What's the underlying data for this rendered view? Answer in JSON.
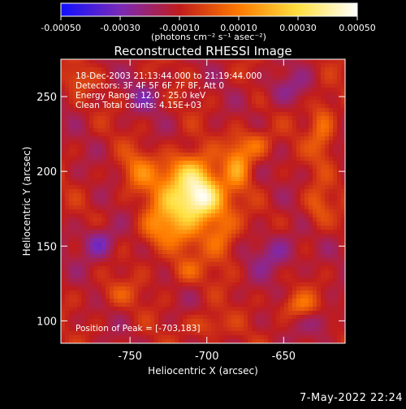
{
  "chart_data": {
    "type": "heatmap",
    "title": "Reconstructed RHESSI Image",
    "xlabel": "Heliocentric X (arcsec)",
    "ylabel": "Heliocentric Y (arcsec)",
    "xlim": [
      -795,
      -610
    ],
    "ylim": [
      85,
      275
    ],
    "x_ticks": [
      -750,
      -700,
      -650
    ],
    "y_ticks": [
      100,
      150,
      200,
      250
    ],
    "colorbar": {
      "range": [
        -0.0005,
        0.0005
      ],
      "ticks": [
        -0.0005,
        -0.0003,
        -0.0001,
        0.0001,
        0.0003,
        0.0005
      ],
      "tick_labels": [
        "-0.00050",
        "-0.00030",
        "-0.00010",
        "0.00010",
        "0.00030",
        "0.00050"
      ],
      "unit_label": "(photons cm⁻² s⁻¹ asec⁻²)",
      "colors": [
        "#1010ff",
        "#7a2ab8",
        "#c01c1c",
        "#ff7a00",
        "#ffe040",
        "#ffffff"
      ]
    },
    "annotations": [
      "18-Dec-2003 21:13:44.000 to 21:19:44.000",
      "Detectors: 3F 4F 5F 6F 7F 8F, Att 0",
      "Energy Range: 12.0 - 25.0 keV",
      "Clean    Total counts: 4.15E+03"
    ],
    "peak_label": "Position of Peak = [-703,183]",
    "peak": [
      -703,
      183
    ],
    "sources": [
      {
        "x": -703,
        "y": 183,
        "amp": 0.0005,
        "sx": 9,
        "sy": 10
      },
      {
        "x": -720,
        "y": 175,
        "amp": 0.0003,
        "sx": 12,
        "sy": 18
      },
      {
        "x": -712,
        "y": 200,
        "amp": 0.00026,
        "sx": 10,
        "sy": 9
      },
      {
        "x": -690,
        "y": 160,
        "amp": 0.0002,
        "sx": 8,
        "sy": 14
      },
      {
        "x": -680,
        "y": 205,
        "amp": 0.00024,
        "sx": 6,
        "sy": 12
      },
      {
        "x": -668,
        "y": 218,
        "amp": 0.00018,
        "sx": 7,
        "sy": 7
      },
      {
        "x": -745,
        "y": 200,
        "amp": 0.00016,
        "sx": 8,
        "sy": 10
      },
      {
        "x": -735,
        "y": 160,
        "amp": 0.00012,
        "sx": 7,
        "sy": 9
      },
      {
        "x": -625,
        "y": 230,
        "amp": 0.00018,
        "sx": 6,
        "sy": 16
      },
      {
        "x": -628,
        "y": 175,
        "amp": 0.00014,
        "sx": 6,
        "sy": 10
      },
      {
        "x": -640,
        "y": 110,
        "amp": 0.00016,
        "sx": 10,
        "sy": 6
      },
      {
        "x": -700,
        "y": 97,
        "amp": 0.00014,
        "sx": 8,
        "sy": 6
      },
      {
        "x": -760,
        "y": 118,
        "amp": 0.0001,
        "sx": 10,
        "sy": 6
      },
      {
        "x": -715,
        "y": 133,
        "amp": 0.00012,
        "sx": 8,
        "sy": 6
      },
      {
        "x": -785,
        "y": 262,
        "amp": 0.0001,
        "sx": 6,
        "sy": 6
      },
      {
        "x": -770,
        "y": 152,
        "amp": -0.0002,
        "sx": 8,
        "sy": 8
      },
      {
        "x": -655,
        "y": 145,
        "amp": -0.00016,
        "sx": 10,
        "sy": 10
      },
      {
        "x": -650,
        "y": 255,
        "amp": -0.00012,
        "sx": 10,
        "sy": 8
      },
      {
        "x": -740,
        "y": 250,
        "amp": -0.0001,
        "sx": 8,
        "sy": 8
      },
      {
        "x": -625,
        "y": 100,
        "amp": -0.00014,
        "sx": 7,
        "sy": 7
      }
    ]
  },
  "timestamp": "7-May-2022 22:24"
}
